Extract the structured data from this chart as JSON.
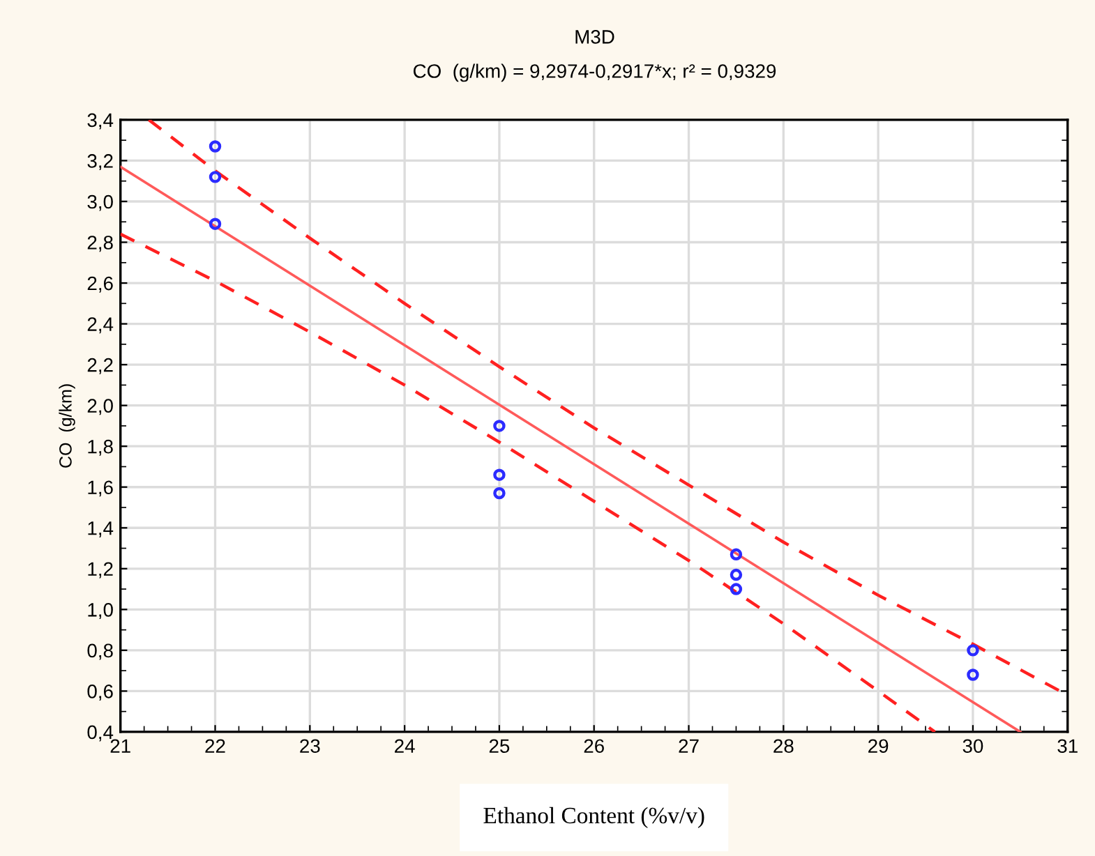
{
  "chart_data": {
    "type": "scatter",
    "title": "M3D",
    "subtitle": "CO  (g/km) = 9,2974-0,2917*x; r² = 0,9329",
    "xlabel": "Ethanol Content (%v/v)",
    "ylabel": "CO  (g/km)",
    "xlim": [
      21,
      31
    ],
    "xticks": [
      21,
      22,
      23,
      24,
      25,
      26,
      27,
      28,
      29,
      30,
      31
    ],
    "ylim": [
      0.4,
      3.4
    ],
    "yticks": [
      {
        "value": 0.4,
        "label": "0,4"
      },
      {
        "value": 0.6,
        "label": "0,6"
      },
      {
        "value": 0.8,
        "label": "0,8"
      },
      {
        "value": 1.0,
        "label": "1,0"
      },
      {
        "value": 1.2,
        "label": "1,2"
      },
      {
        "value": 1.4,
        "label": "1,4"
      },
      {
        "value": 1.6,
        "label": "1,6"
      },
      {
        "value": 1.8,
        "label": "1,8"
      },
      {
        "value": 2.0,
        "label": "2,0"
      },
      {
        "value": 2.2,
        "label": "2,2"
      },
      {
        "value": 2.4,
        "label": "2,4"
      },
      {
        "value": 2.6,
        "label": "2,6"
      },
      {
        "value": 2.8,
        "label": "2,8"
      },
      {
        "value": 3.0,
        "label": "3,0"
      },
      {
        "value": 3.2,
        "label": "3,2"
      },
      {
        "value": 3.4,
        "label": "3,4"
      }
    ],
    "grid": true,
    "legend": false,
    "series": [
      {
        "color": "#2b2bff",
        "marker": "circle",
        "x": [
          22,
          22,
          22,
          25,
          25,
          25,
          27.5,
          27.5,
          27.5,
          30,
          30
        ],
        "values": [
          3.27,
          3.12,
          2.89,
          1.9,
          1.66,
          1.57,
          1.27,
          1.17,
          1.1,
          0.8,
          0.68
        ]
      },
      {
        "type": "line",
        "color": "#ff5a5a",
        "line_style": "solid",
        "x": [
          21,
          30.5
        ],
        "values": [
          3.17,
          0.4
        ]
      },
      {
        "type": "line",
        "color": "#ff2020",
        "line_style": "dashed",
        "x": [
          21.3,
          22,
          23,
          24,
          25,
          26,
          27,
          28,
          29,
          30,
          31
        ],
        "values": [
          3.4,
          3.15,
          2.82,
          2.5,
          2.19,
          1.89,
          1.61,
          1.33,
          1.07,
          0.83,
          0.58
        ]
      },
      {
        "type": "line",
        "color": "#ff2020",
        "line_style": "dashed",
        "x": [
          21,
          22,
          23,
          24,
          25,
          26,
          27,
          28,
          29,
          29.6
        ],
        "values": [
          2.84,
          2.61,
          2.36,
          2.1,
          1.82,
          1.53,
          1.24,
          0.93,
          0.6,
          0.4
        ]
      }
    ]
  }
}
